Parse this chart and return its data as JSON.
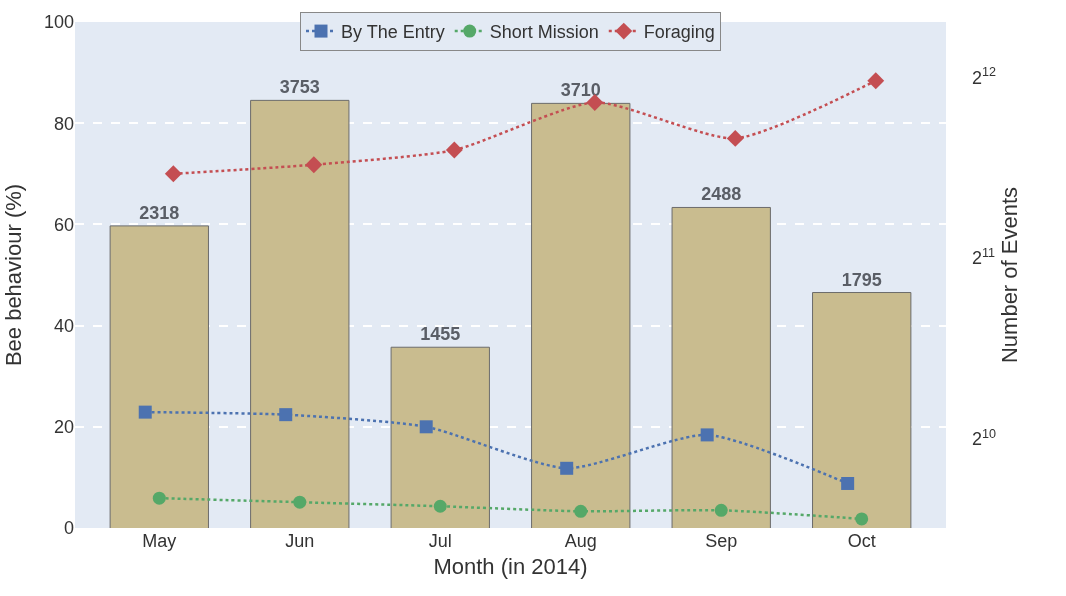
{
  "chart_data": {
    "type": "line",
    "xlabel": "Month (in 2014)",
    "ylabel": "Bee behaviour (%)",
    "y2label": "Number of Events",
    "categories": [
      "May",
      "Jun",
      "Jul",
      "Aug",
      "Sep",
      "Oct"
    ],
    "series": [
      {
        "type": "bar",
        "axis": "y2",
        "color": "#c9bc8f",
        "values": [
          2318,
          3753,
          1455,
          3710,
          2488,
          1795
        ],
        "data_labels": true
      },
      {
        "name": "By The Entry",
        "color": "#4c72b0",
        "marker": "square",
        "values": [
          22.9,
          22.4,
          20,
          11.8,
          18.4,
          8.8
        ]
      },
      {
        "name": "Short Mission",
        "color": "#55a868",
        "marker": "circle",
        "values": [
          5.9,
          5.1,
          4.3,
          3.3,
          3.5,
          1.8
        ]
      },
      {
        "name": "Foraging",
        "color": "#c44e52",
        "marker": "diamond",
        "values": [
          70,
          71.8,
          74.7,
          84.1,
          77,
          88.4
        ]
      }
    ],
    "line_style": "dotted",
    "ylim": [
      0,
      100
    ],
    "yticks": [
      0,
      20,
      40,
      60,
      80,
      100
    ],
    "log": "y2",
    "y2lim": [
      727,
      5070
    ],
    "y2ticks": [
      {
        "value": 1024,
        "label": "2$^{10}$"
      },
      {
        "value": 2048,
        "label": "2$^{11}$"
      },
      {
        "value": 4096,
        "label": "2$^{12}$"
      }
    ],
    "grid": "y",
    "legend": "top"
  }
}
